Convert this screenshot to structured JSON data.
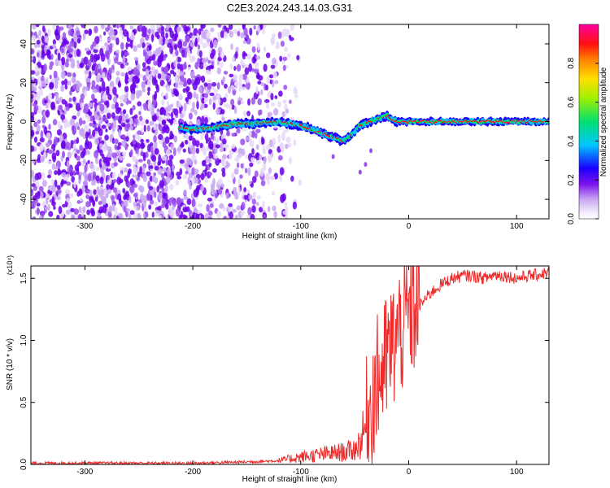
{
  "title": "C2E3.2024.243.14.03.G31",
  "chart_data": [
    {
      "type": "heatmap",
      "xlabel": "Height of straight line (km)",
      "ylabel": "Frequency (Hz)",
      "xlim": [
        -350,
        130
      ],
      "ylim": [
        -50,
        50
      ],
      "xticks": [
        -300,
        -200,
        -100,
        0,
        100
      ],
      "yticks": [
        -40,
        -20,
        0,
        20,
        40
      ],
      "colorbar": {
        "label": "Normalized spectral amplitude",
        "range": [
          0,
          1
        ],
        "ticks": [
          0.0,
          0.2,
          0.4,
          0.6,
          0.8
        ],
        "colormap": "rainbow",
        "colors": [
          "#ffffff",
          "#e8d8f8",
          "#a060e8",
          "#6a00e8",
          "#0000ff",
          "#00c8ff",
          "#00e070",
          "#a0f000",
          "#ffe000",
          "#ff8000",
          "#ff0000",
          "#ff00a0"
        ]
      },
      "ridge": {
        "x": [
          -212,
          -200,
          -180,
          -160,
          -140,
          -120,
          -100,
          -90,
          -80,
          -70,
          -60,
          -55,
          -50,
          -45,
          -40,
          -35,
          -30,
          -25,
          -20,
          -15,
          -10,
          0,
          20,
          50,
          80,
          100,
          130
        ],
        "y": [
          -3,
          -4,
          -3,
          -1,
          -1,
          0,
          -2,
          -4,
          -6,
          -8,
          -10,
          -8,
          -5,
          -2,
          -1,
          0,
          1,
          2,
          3,
          1,
          0,
          0,
          0,
          0,
          0,
          0,
          0
        ]
      },
      "noise_region_x": [
        -350,
        -140
      ]
    },
    {
      "type": "line",
      "xlabel": "Height of straight line (km)",
      "ylabel": "SNR (10 * v/v)",
      "y_multiplier": "(x10⁴)",
      "xlim": [
        -350,
        130
      ],
      "ylim": [
        0,
        1.6
      ],
      "xticks": [
        -300,
        -200,
        -100,
        0,
        100
      ],
      "yticks": [
        0.0,
        0.5,
        1.0,
        1.5
      ],
      "series": [
        {
          "color": "#ff2020",
          "x": [
            -350,
            -300,
            -250,
            -200,
            -150,
            -120,
            -100,
            -80,
            -60,
            -50,
            -45,
            -40,
            -35,
            -30,
            -25,
            -20,
            -15,
            -10,
            -5,
            0,
            10,
            20,
            30,
            40,
            50,
            60,
            70,
            80,
            90,
            100,
            110,
            120,
            130
          ],
          "y": [
            0.01,
            0.01,
            0.01,
            0.01,
            0.02,
            0.03,
            0.06,
            0.08,
            0.1,
            0.12,
            0.18,
            0.3,
            0.5,
            0.65,
            0.75,
            0.85,
            0.95,
            1.05,
            1.12,
            1.2,
            1.28,
            1.38,
            1.45,
            1.5,
            1.52,
            1.52,
            1.5,
            1.53,
            1.52,
            1.5,
            1.52,
            1.53,
            1.55
          ]
        }
      ]
    }
  ]
}
